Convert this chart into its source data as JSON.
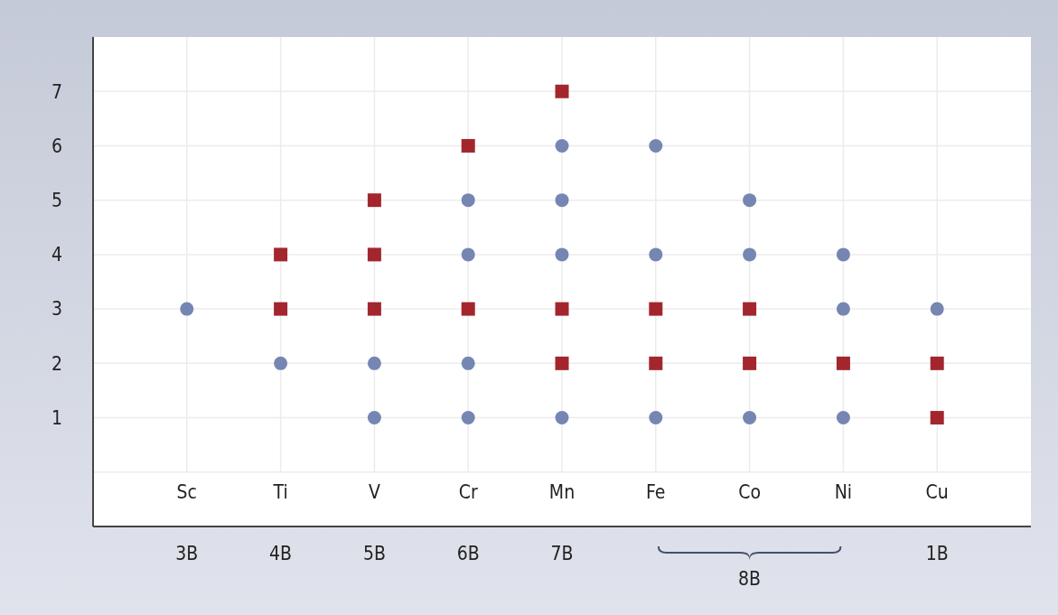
{
  "chart_data": {
    "type": "scatter",
    "categories": [
      "Sc",
      "Ti",
      "V",
      "Cr",
      "Mn",
      "Fe",
      "Co",
      "Ni",
      "Cu"
    ],
    "series": [
      {
        "color": "#7586b3",
        "marker": "circle",
        "x": [
          "Sc",
          "Ti",
          "V",
          "V",
          "Cr",
          "Cr",
          "Cr",
          "Cr",
          "Mn",
          "Mn",
          "Mn",
          "Mn",
          "Fe",
          "Fe",
          "Fe",
          "Co",
          "Co",
          "Co",
          "Ni",
          "Ni",
          "Ni",
          "Cu"
        ],
        "values": [
          3,
          2,
          2,
          1,
          5,
          4,
          2,
          1,
          6,
          5,
          4,
          1,
          6,
          4,
          1,
          5,
          4,
          1,
          4,
          3,
          1,
          3
        ]
      },
      {
        "color": "#a3262e",
        "marker": "square",
        "x": [
          "Ti",
          "Ti",
          "V",
          "V",
          "V",
          "Cr",
          "Cr",
          "Mn",
          "Mn",
          "Mn",
          "Fe",
          "Fe",
          "Co",
          "Co",
          "Ni",
          "Cu",
          "Cu"
        ],
        "values": [
          4,
          3,
          5,
          4,
          3,
          6,
          3,
          7,
          3,
          2,
          3,
          2,
          3,
          2,
          2,
          2,
          1
        ]
      }
    ],
    "ylim": [
      -1,
      8
    ],
    "yticks": [
      {
        "value": 0,
        "label": null
      },
      1,
      2,
      3,
      4,
      5,
      6,
      7
    ],
    "grid": true,
    "annotations": [
      "3B",
      "4B",
      "5B",
      "6B",
      "7B",
      "8B",
      "1B"
    ]
  }
}
